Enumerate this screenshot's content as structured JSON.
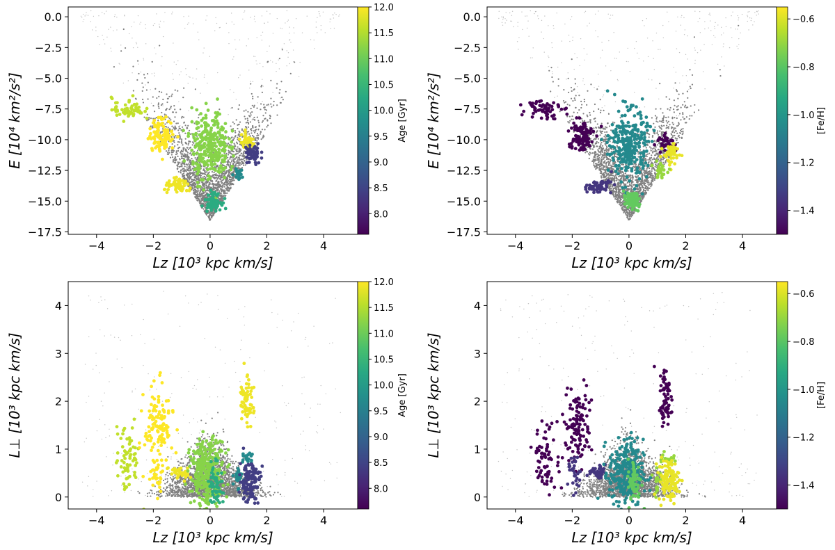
{
  "colors": {
    "background_points": "#808080",
    "axes": "#000000"
  },
  "colormap": "viridis",
  "chart_data": [
    {
      "type": "scatter",
      "id": "E-Lz-age",
      "xlabel": "Lz [10³ kpc km/s]",
      "ylabel": "E [10⁴ km²/s²]",
      "xlim": [
        -5,
        5.2
      ],
      "ylim": [
        -17.7,
        0.8
      ],
      "xticks": [
        -4,
        -2,
        0,
        2,
        4
      ],
      "xtick_labels": [
        "−4",
        "−2",
        "0",
        "2",
        "4"
      ],
      "yticks": [
        0.0,
        -2.5,
        -5.0,
        -7.5,
        -10.0,
        -12.5,
        -15.0,
        -17.5
      ],
      "ytick_labels": [
        "0.0",
        "−2.5",
        "−5.0",
        "−7.5",
        "−10.0",
        "−12.5",
        "−15.0",
        "−17.5"
      ],
      "colorbar": {
        "label": "Age [Gyr]",
        "vmin": 7.6,
        "vmax": 12.0,
        "ticks": [
          8.0,
          8.5,
          9.0,
          9.5,
          10.0,
          10.5,
          11.0,
          11.5,
          12.0
        ],
        "tick_labels": [
          "8.0",
          "8.5",
          "9.0",
          "9.5",
          "10.0",
          "10.5",
          "11.0",
          "11.5",
          "12.0"
        ]
      },
      "groups": [
        {
          "x": -2.9,
          "y": -7.5,
          "sx": 0.28,
          "sy": 0.45,
          "n": 60,
          "c": 11.6
        },
        {
          "x": -1.7,
          "y": -9.6,
          "sx": 0.22,
          "sy": 0.65,
          "n": 110,
          "c": 12.0
        },
        {
          "x": 0.0,
          "y": -10.5,
          "sx": 0.32,
          "sy": 1.4,
          "n": 300,
          "c": 11.2
        },
        {
          "x": -1.1,
          "y": -13.8,
          "sx": 0.25,
          "sy": 0.28,
          "n": 60,
          "c": 11.9
        },
        {
          "x": 1.3,
          "y": -10.2,
          "sx": 0.15,
          "sy": 0.3,
          "n": 40,
          "c": 11.9
        },
        {
          "x": 1.5,
          "y": -11.2,
          "sx": 0.14,
          "sy": 0.45,
          "n": 60,
          "c": 8.4
        },
        {
          "x": 1.0,
          "y": -12.8,
          "sx": 0.08,
          "sy": 0.2,
          "n": 20,
          "c": 9.7
        },
        {
          "x": 0.1,
          "y": -15.0,
          "sx": 0.14,
          "sy": 0.35,
          "n": 80,
          "c": 10.3
        }
      ]
    },
    {
      "type": "scatter",
      "id": "E-Lz-feh",
      "xlabel": "Lz [10³ kpc km/s]",
      "ylabel": "E [10⁴ km²/s²]",
      "xlim": [
        -5,
        5.2
      ],
      "ylim": [
        -17.7,
        0.8
      ],
      "xticks": [
        -4,
        -2,
        0,
        2,
        4
      ],
      "xtick_labels": [
        "−4",
        "−2",
        "0",
        "2",
        "4"
      ],
      "yticks": [
        0.0,
        -2.5,
        -5.0,
        -7.5,
        -10.0,
        -12.5,
        -15.0,
        -17.5
      ],
      "ytick_labels": [
        "0.0",
        "−2.5",
        "−5.0",
        "−7.5",
        "−10.0",
        "−12.5",
        "−15.0",
        "−17.5"
      ],
      "colorbar": {
        "label": "[Fe/H]",
        "vmin": -1.5,
        "vmax": -0.55,
        "ticks": [
          -1.4,
          -1.2,
          -1.0,
          -0.8,
          -0.6
        ],
        "tick_labels": [
          "−1.4",
          "−1.2",
          "−1.0",
          "−0.8",
          "−0.6"
        ]
      },
      "groups": [
        {
          "x": -3.0,
          "y": -7.4,
          "sx": 0.3,
          "sy": 0.45,
          "n": 60,
          "c": -1.5
        },
        {
          "x": -1.7,
          "y": -9.7,
          "sx": 0.22,
          "sy": 0.65,
          "n": 110,
          "c": -1.5
        },
        {
          "x": 0.0,
          "y": -10.5,
          "sx": 0.32,
          "sy": 1.4,
          "n": 300,
          "c": -1.05
        },
        {
          "x": -1.1,
          "y": -13.8,
          "sx": 0.25,
          "sy": 0.28,
          "n": 60,
          "c": -1.35
        },
        {
          "x": 1.3,
          "y": -10.2,
          "sx": 0.15,
          "sy": 0.3,
          "n": 40,
          "c": -1.5
        },
        {
          "x": 1.5,
          "y": -11.2,
          "sx": 0.14,
          "sy": 0.45,
          "n": 60,
          "c": -0.58
        },
        {
          "x": 1.1,
          "y": -12.5,
          "sx": 0.12,
          "sy": 0.3,
          "n": 30,
          "c": -0.7
        },
        {
          "x": 0.1,
          "y": -15.0,
          "sx": 0.14,
          "sy": 0.35,
          "n": 80,
          "c": -0.78
        }
      ]
    },
    {
      "type": "scatter",
      "id": "Lperp-Lz-age",
      "xlabel": "Lz [10³ kpc km/s]",
      "ylabel": "L⊥ [10³ kpc km/s]",
      "xlim": [
        -5,
        5.2
      ],
      "ylim": [
        -0.25,
        4.5
      ],
      "xticks": [
        -4,
        -2,
        0,
        2,
        4
      ],
      "xtick_labels": [
        "−4",
        "−2",
        "0",
        "2",
        "4"
      ],
      "yticks": [
        0,
        1,
        2,
        3,
        4
      ],
      "ytick_labels": [
        "0",
        "1",
        "2",
        "3",
        "4"
      ],
      "colorbar": {
        "label": "Age [Gyr]",
        "vmin": 7.6,
        "vmax": 12.0,
        "ticks": [
          8.0,
          8.5,
          9.0,
          9.5,
          10.0,
          10.5,
          11.0,
          11.5,
          12.0
        ],
        "tick_labels": [
          "8.0",
          "8.5",
          "9.0",
          "9.5",
          "10.0",
          "10.5",
          "11.0",
          "11.5",
          "12.0"
        ]
      },
      "groups": [
        {
          "x": -2.9,
          "y": 0.8,
          "sx": 0.22,
          "sy": 0.35,
          "n": 70,
          "c": 11.6
        },
        {
          "x": -1.8,
          "y": 1.5,
          "sx": 0.25,
          "sy": 0.4,
          "n": 120,
          "c": 12.0
        },
        {
          "x": -1.9,
          "y": 0.45,
          "sx": 0.12,
          "sy": 0.2,
          "n": 30,
          "c": 12.0
        },
        {
          "x": -1.1,
          "y": 0.5,
          "sx": 0.18,
          "sy": 0.08,
          "n": 40,
          "c": 11.9
        },
        {
          "x": -0.1,
          "y": 0.5,
          "sx": 0.3,
          "sy": 0.35,
          "n": 300,
          "c": 11.2
        },
        {
          "x": 0.2,
          "y": 0.3,
          "sx": 0.12,
          "sy": 0.25,
          "n": 60,
          "c": 10.3
        },
        {
          "x": 1.3,
          "y": 2.2,
          "sx": 0.12,
          "sy": 0.25,
          "n": 40,
          "c": 11.9
        },
        {
          "x": 1.3,
          "y": 1.8,
          "sx": 0.12,
          "sy": 0.15,
          "n": 25,
          "c": 11.9
        },
        {
          "x": 1.3,
          "y": 0.8,
          "sx": 0.12,
          "sy": 0.06,
          "n": 20,
          "c": 9.7
        },
        {
          "x": 1.0,
          "y": 0.4,
          "sx": 0.08,
          "sy": 0.15,
          "n": 20,
          "c": 9.7
        },
        {
          "x": 1.4,
          "y": 0.35,
          "sx": 0.18,
          "sy": 0.22,
          "n": 120,
          "c": 8.4
        }
      ]
    },
    {
      "type": "scatter",
      "id": "Lperp-Lz-feh",
      "xlabel": "Lz [10³ kpc km/s]",
      "ylabel": "L⊥ [10³ kpc km/s]",
      "xlim": [
        -5,
        5.2
      ],
      "ylim": [
        -0.25,
        4.5
      ],
      "xticks": [
        -4,
        -2,
        0,
        2,
        4
      ],
      "xtick_labels": [
        "−4",
        "−2",
        "0",
        "2",
        "4"
      ],
      "yticks": [
        0,
        1,
        2,
        3,
        4
      ],
      "ytick_labels": [
        "0",
        "1",
        "2",
        "3",
        "4"
      ],
      "colorbar": {
        "label": "[Fe/H]",
        "vmin": -1.5,
        "vmax": -0.55,
        "ticks": [
          -1.4,
          -1.2,
          -1.0,
          -0.8,
          -0.6
        ],
        "tick_labels": [
          "−1.4",
          "−1.2",
          "−1.0",
          "−0.8",
          "−0.6"
        ]
      },
      "groups": [
        {
          "x": -2.9,
          "y": 0.8,
          "sx": 0.22,
          "sy": 0.35,
          "n": 70,
          "c": -1.5
        },
        {
          "x": -1.8,
          "y": 1.5,
          "sx": 0.25,
          "sy": 0.4,
          "n": 120,
          "c": -1.5
        },
        {
          "x": -1.9,
          "y": 0.45,
          "sx": 0.12,
          "sy": 0.2,
          "n": 30,
          "c": -1.35
        },
        {
          "x": -1.1,
          "y": 0.5,
          "sx": 0.18,
          "sy": 0.08,
          "n": 40,
          "c": -1.35
        },
        {
          "x": -0.1,
          "y": 0.5,
          "sx": 0.3,
          "sy": 0.35,
          "n": 300,
          "c": -1.05
        },
        {
          "x": 0.2,
          "y": 0.3,
          "sx": 0.12,
          "sy": 0.25,
          "n": 60,
          "c": -0.78
        },
        {
          "x": 1.3,
          "y": 2.2,
          "sx": 0.12,
          "sy": 0.25,
          "n": 40,
          "c": -1.5
        },
        {
          "x": 1.3,
          "y": 1.8,
          "sx": 0.12,
          "sy": 0.15,
          "n": 25,
          "c": -1.5
        },
        {
          "x": 1.3,
          "y": 0.8,
          "sx": 0.12,
          "sy": 0.06,
          "n": 20,
          "c": -0.7
        },
        {
          "x": 1.0,
          "y": 0.4,
          "sx": 0.08,
          "sy": 0.15,
          "n": 20,
          "c": -0.7
        },
        {
          "x": 1.4,
          "y": 0.35,
          "sx": 0.18,
          "sy": 0.22,
          "n": 120,
          "c": -0.58
        }
      ]
    }
  ]
}
